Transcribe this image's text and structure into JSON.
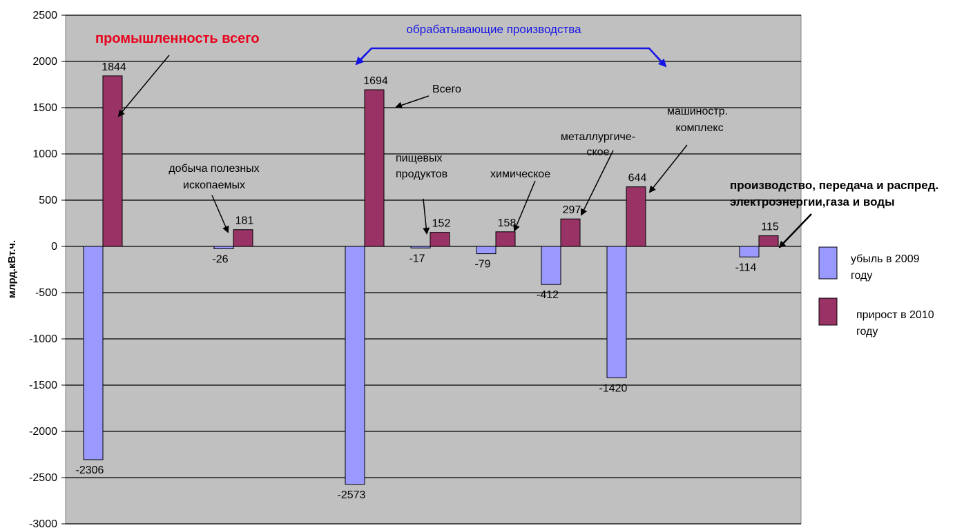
{
  "chart_data": {
    "type": "bar",
    "ylabel": "млрд.кВт.ч.",
    "ylim": [
      -3000,
      2500
    ],
    "yticks": [
      "2500",
      "2000",
      "1500",
      "1000",
      "500",
      "0",
      "-500",
      "-1000",
      "-1500",
      "-2000",
      "-2500",
      "-3000"
    ],
    "grid": true,
    "legend_position": "right",
    "categories": [
      "промышленность всего",
      "добыча полезных ископаемых",
      "Всего",
      "пищевых продуктов",
      "химическое",
      "металлургическое",
      "машиностр. комплекс",
      "производство, передача и распред. электроэнергии,газа и воды"
    ],
    "series": [
      {
        "name": "убыль в 2009 году",
        "values": [
          -2306,
          -26,
          -2573,
          -17,
          -79,
          -412,
          -1420,
          -114
        ],
        "labels": [
          "-2306",
          "-26",
          "-2573",
          "-17",
          "-79",
          "-412",
          "-1420",
          "-114"
        ]
      },
      {
        "name": "прирост в 2010 году",
        "values": [
          1844,
          181,
          1694,
          152,
          158,
          297,
          644,
          115
        ],
        "labels": [
          "1844",
          "181",
          "1694",
          "152",
          "158",
          "297",
          "644",
          "115"
        ]
      }
    ],
    "colors": {
      "decline": "#9999ff",
      "growth": "#993366",
      "plot_bg": "#c0c0c0",
      "grid": "#000000"
    },
    "legend": {
      "decline": [
        "убыль в 2009",
        "году"
      ],
      "growth": [
        "прирост в 2010",
        "году"
      ]
    },
    "annotations": {
      "industry_total": "промышленность всего",
      "manufacturing": "обрабатывающие производства",
      "mining": [
        "добыча полезных",
        "ископаемых"
      ],
      "total": "Всего",
      "food": [
        "пищевых",
        "продуктов"
      ],
      "chemical": "химическое",
      "metallurgy": [
        "металлургиче-",
        "ское"
      ],
      "machinery": [
        "машиностр.",
        "комплекс"
      ],
      "energy": [
        "производство, передача и распред.",
        "электроэнергии,газа и воды"
      ]
    }
  }
}
